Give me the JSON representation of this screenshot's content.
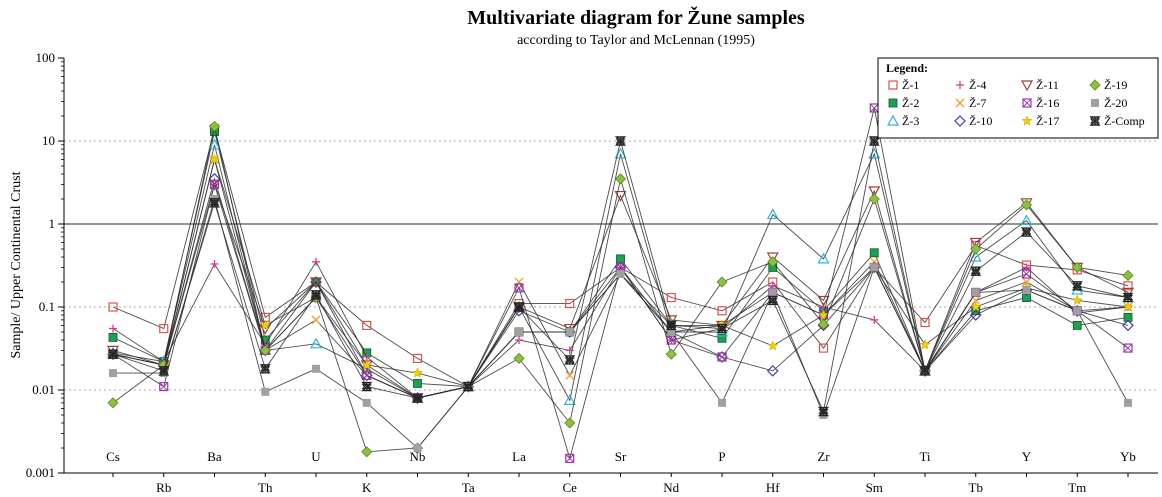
{
  "chart_data": {
    "type": "line",
    "title": "Multivariate diagram for Žune samples",
    "subtitle": "according to Taylor and McLennan (1995)",
    "ylabel": "Sample/ Upper Continental Crust",
    "y_scale": "log",
    "ylim": [
      0.001,
      100
    ],
    "yticks": [
      "0.001",
      "0.01",
      "0.1",
      "1",
      "10",
      "100"
    ],
    "categories": [
      "Cs",
      "Rb",
      "Ba",
      "Th",
      "U",
      "K",
      "Nb",
      "Ta",
      "La",
      "Ce",
      "Sr",
      "Nd",
      "P",
      "Hf",
      "Zr",
      "Sm",
      "Ti",
      "Tb",
      "Y",
      "Tm",
      "Yb"
    ],
    "legend_title": "Legend:",
    "legend_position": "top-right",
    "series": [
      {
        "name": "Ž-1",
        "marker": "square",
        "color": "#e0504a",
        "values": [
          0.1,
          0.055,
          14,
          0.075,
          0.2,
          0.06,
          0.024,
          0.011,
          0.11,
          0.11,
          0.3,
          0.13,
          0.09,
          0.2,
          0.032,
          0.3,
          0.065,
          0.55,
          0.32,
          0.28,
          0.18
        ]
      },
      {
        "name": "Ž-2",
        "marker": "filled-square",
        "color": "#1fa050",
        "values": [
          0.043,
          0.022,
          13,
          0.04,
          0.2,
          0.028,
          0.012,
          0.011,
          0.05,
          0.05,
          0.38,
          0.06,
          0.042,
          0.3,
          0.09,
          0.45,
          0.017,
          0.09,
          0.13,
          0.06,
          0.075
        ]
      },
      {
        "name": "Ž-3",
        "marker": "triangle-up",
        "color": "#2bb5d6",
        "values": [
          0.028,
          0.022,
          9,
          0.03,
          0.036,
          0.018,
          0.008,
          0.011,
          0.1,
          0.0075,
          7,
          0.05,
          0.05,
          1.3,
          0.38,
          7,
          0.017,
          0.4,
          1.1,
          0.16,
          0.13
        ]
      },
      {
        "name": "Ž-4",
        "marker": "plus",
        "color": "#d63a9a",
        "values": [
          0.055,
          0.022,
          0.33,
          0.035,
          0.35,
          0.025,
          0.008,
          0.011,
          0.04,
          0.03,
          0.3,
          0.04,
          0.055,
          0.18,
          0.1,
          0.07,
          0.017,
          0.15,
          0.3,
          0.085,
          0.1
        ]
      },
      {
        "name": "Ž-7",
        "marker": "x",
        "color": "#f0a030",
        "values": [
          0.027,
          0.02,
          6,
          0.03,
          0.07,
          0.015,
          0.008,
          0.011,
          0.2,
          0.015,
          0.25,
          0.06,
          0.06,
          0.15,
          0.08,
          0.35,
          0.017,
          0.12,
          0.2,
          0.09,
          0.1
        ]
      },
      {
        "name": "Ž-10",
        "marker": "diamond",
        "color": "#4a3aa0",
        "values": [
          0.027,
          0.02,
          3.5,
          0.03,
          0.2,
          0.015,
          0.008,
          0.011,
          0.09,
          0.05,
          0.3,
          0.05,
          0.025,
          0.017,
          0.06,
          0.3,
          0.017,
          0.08,
          0.16,
          0.09,
          0.06
        ]
      },
      {
        "name": "Ž-11",
        "marker": "triangle-down",
        "color": "#a04030",
        "values": [
          0.03,
          0.02,
          3,
          0.055,
          0.2,
          0.02,
          0.008,
          0.011,
          0.1,
          0.055,
          2.2,
          0.07,
          0.06,
          0.4,
          0.12,
          2.5,
          0.017,
          0.6,
          1.8,
          0.3,
          0.15
        ]
      },
      {
        "name": "Ž-16",
        "marker": "boxed-x",
        "color": "#9a3aa8",
        "values": [
          0.027,
          0.011,
          3,
          0.03,
          0.13,
          0.015,
          0.008,
          0.011,
          0.17,
          0.0015,
          0.3,
          0.04,
          0.025,
          0.15,
          0.08,
          25,
          0.017,
          0.15,
          0.25,
          0.09,
          0.032
        ]
      },
      {
        "name": "Ž-17",
        "marker": "star",
        "color": "#f0d000",
        "values": [
          0.027,
          0.02,
          6,
          0.06,
          0.13,
          0.02,
          0.016,
          0.011,
          0.05,
          0.05,
          0.25,
          0.05,
          0.06,
          0.034,
          0.08,
          0.3,
          0.035,
          0.1,
          0.17,
          0.12,
          0.1
        ]
      },
      {
        "name": "Ž-19",
        "marker": "filled-diamond",
        "color": "#8cc040",
        "values": [
          0.007,
          0.02,
          15,
          0.03,
          0.13,
          0.0018,
          0.002,
          0.011,
          0.024,
          0.004,
          3.5,
          0.027,
          0.2,
          0.35,
          0.062,
          2,
          0.017,
          0.5,
          1.7,
          0.3,
          0.24
        ]
      },
      {
        "name": "Ž-20",
        "marker": "filled-square-grey",
        "color": "#a0a0a0",
        "values": [
          0.016,
          0.016,
          2,
          0.0095,
          0.018,
          0.007,
          0.002,
          0.011,
          0.05,
          0.05,
          0.25,
          0.05,
          0.007,
          0.15,
          0.005,
          0.3,
          0.017,
          0.15,
          0.16,
          0.09,
          0.007
        ]
      },
      {
        "name": "Ž-Comp",
        "marker": "hourglass",
        "color": "#222222",
        "values": [
          0.027,
          0.017,
          1.8,
          0.018,
          0.14,
          0.011,
          0.008,
          0.011,
          0.1,
          0.023,
          10,
          0.06,
          0.055,
          0.12,
          0.0055,
          10,
          0.017,
          0.27,
          0.8,
          0.18,
          0.13
        ]
      }
    ]
  }
}
